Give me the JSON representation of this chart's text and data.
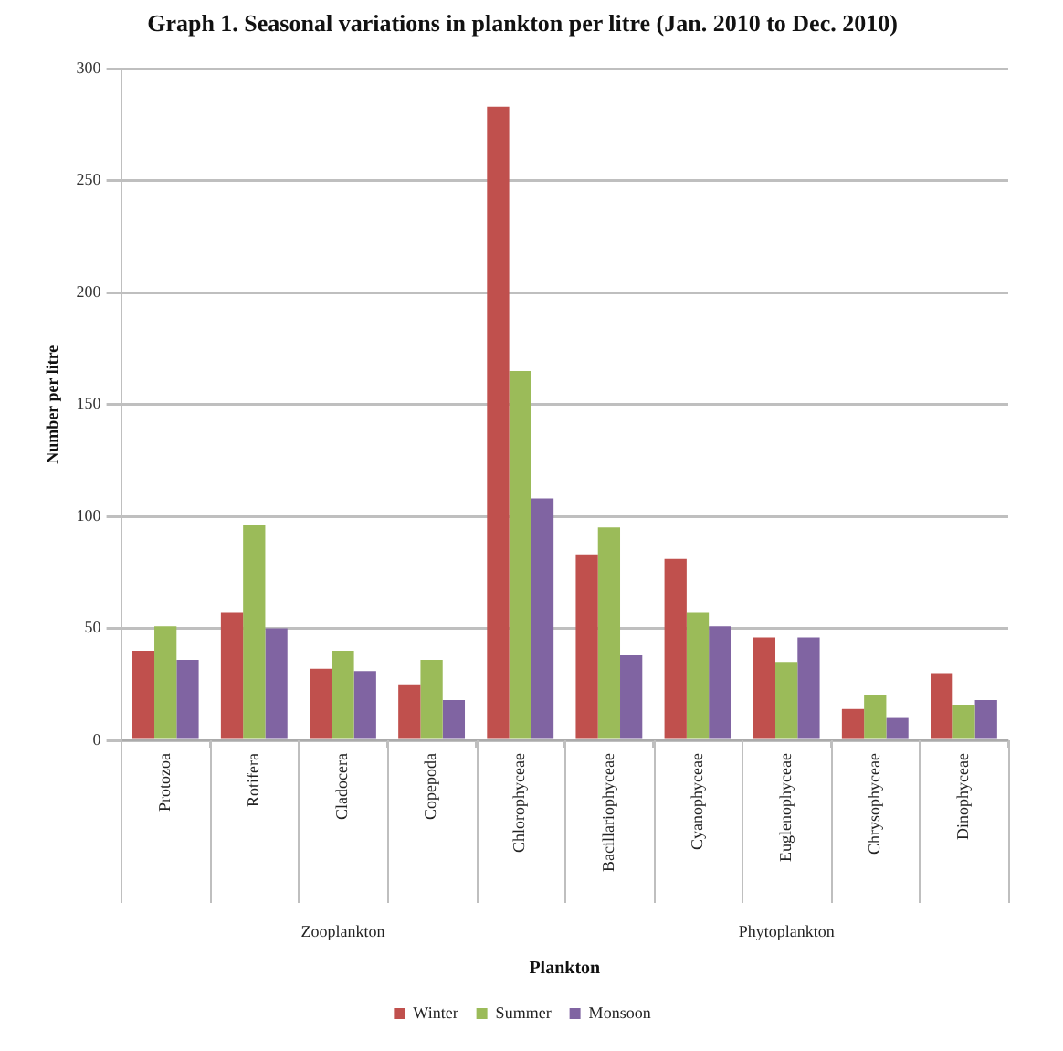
{
  "chart_data": {
    "type": "bar",
    "title": "Graph 1. Seasonal variations in plankton per litre (Jan. 2010 to Dec. 2010)",
    "xlabel": "Plankton",
    "ylabel": "Number per litre",
    "categories": [
      "Protozoa",
      "Rotifera",
      "Cladocera",
      "Copepoda",
      "Chlorophyceae",
      "Bacillariophyceae",
      "Cyanophyceae",
      "Euglenophyceae",
      "Chrysophyceae",
      "Dinophyceae"
    ],
    "series": [
      {
        "name": "Winter",
        "color": "#c0504d",
        "values": [
          40,
          57,
          32,
          25,
          283,
          83,
          81,
          46,
          14,
          30
        ]
      },
      {
        "name": "Summer",
        "color": "#9bbb59",
        "values": [
          51,
          96,
          40,
          36,
          165,
          95,
          57,
          35,
          20,
          16
        ]
      },
      {
        "name": "Monsoon",
        "color": "#8064a2",
        "values": [
          36,
          50,
          31,
          18,
          108,
          38,
          51,
          46,
          10,
          18
        ]
      }
    ],
    "ylim": [
      0,
      300
    ],
    "yticks": [
      0,
      50,
      100,
      150,
      200,
      250,
      300
    ],
    "grid": "y",
    "legend": "bottom",
    "annotations": [
      "Zooplankton",
      "Phytoplankton"
    ]
  }
}
